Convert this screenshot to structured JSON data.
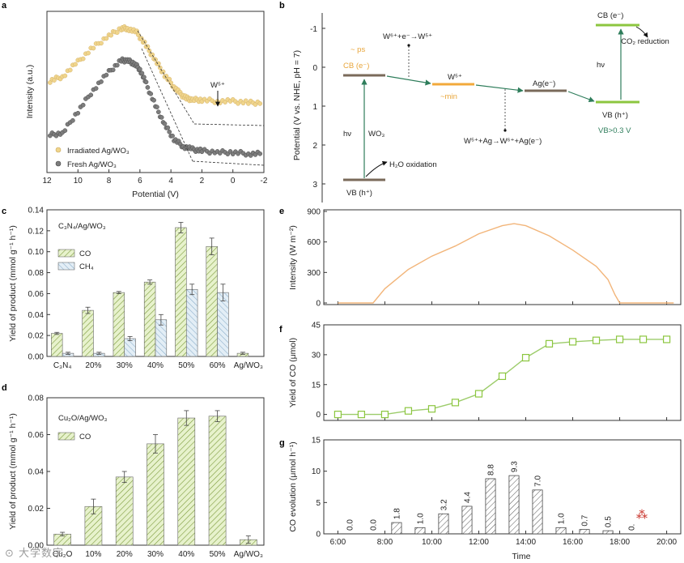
{
  "panel_letters": {
    "a": "a",
    "b": "b",
    "c": "c",
    "d": "d",
    "e": "e",
    "f": "f",
    "g": "g"
  },
  "watermark": "⊙ 大学数字",
  "chart_data": [
    {
      "panel": "a",
      "type": "scatter",
      "ylabel": "Intensity (a.u.)",
      "xlabel": "Potential (V)",
      "x_ticks": [
        "12",
        "10",
        "8",
        "6",
        "4",
        "2",
        "0",
        "-2"
      ],
      "xlim": [
        12,
        -2
      ],
      "annotation": "W⁵⁺",
      "series": [
        {
          "name": "Irradiated Ag/WO₃",
          "color": "#f0d58c",
          "x": [
            11.8,
            11.0,
            10.0,
            9.0,
            8.0,
            7.2,
            6.8,
            6.2,
            5.6,
            5.0,
            4.4,
            3.8,
            3.4,
            3.0,
            2.6,
            2.0,
            1.0,
            0.0,
            -1.0,
            -1.9
          ],
          "y": [
            0.64,
            0.67,
            0.77,
            0.87,
            0.95,
            1.0,
            1.0,
            0.97,
            0.88,
            0.78,
            0.68,
            0.6,
            0.55,
            0.52,
            0.51,
            0.51,
            0.5,
            0.5,
            0.49,
            0.49
          ]
        },
        {
          "name": "Fresh Ag/WO₃",
          "color": "#7d7d7d",
          "x": [
            11.8,
            11.0,
            10.0,
            9.0,
            8.0,
            7.2,
            6.8,
            6.4,
            6.0,
            5.6,
            5.0,
            4.4,
            3.8,
            3.2,
            2.6,
            2.0,
            1.0,
            0.0,
            -1.0,
            -1.9
          ],
          "y": [
            0.27,
            0.28,
            0.43,
            0.58,
            0.7,
            0.78,
            0.78,
            0.76,
            0.72,
            0.62,
            0.47,
            0.34,
            0.24,
            0.19,
            0.17,
            0.16,
            0.15,
            0.15,
            0.14,
            0.14
          ]
        }
      ]
    },
    {
      "panel": "b",
      "type": "diagram",
      "ylabel": "Potential (V vs. NHE, pH = 7)",
      "y_ticks": [
        "-1",
        "0",
        "1",
        "2",
        "3"
      ],
      "ylim": [
        -1.3,
        3.3
      ],
      "labels": {
        "ps": "~ ps",
        "cb_wo3": "CB (e⁻)",
        "vb_wo3": "VB (h⁺)",
        "hv": "hν",
        "wo3": "WO₃",
        "h2o": "H₂O oxidation",
        "w5_top": "W⁶⁺+e⁻→W⁵⁺",
        "w5": "W⁵⁺",
        "min": "~min",
        "ag": "Ag(e⁻)",
        "w5_bottom": "W⁵⁺+Ag→W⁶⁺+Ag(e⁻)",
        "cb2": "CB (e⁻)",
        "co2": "CO₂ reduction",
        "hv2": "hν",
        "vb2": "VB (h⁺)",
        "vb2_note": "VB>0.3 V"
      }
    },
    {
      "panel": "c",
      "type": "bar",
      "legend_title": "C₃N₄/Ag/WO₃",
      "ylabel": "Yield of product (mmol g⁻¹ h⁻¹)",
      "categories": [
        "C₃N₄",
        "20%",
        "30%",
        "40%",
        "50%",
        "60%",
        "Ag/WO₃"
      ],
      "ylim": [
        0,
        0.14
      ],
      "y_ticks": [
        "0.00",
        "0.02",
        "0.04",
        "0.06",
        "0.08",
        "0.10",
        "0.12",
        "0.14"
      ],
      "series": [
        {
          "name": "CO",
          "values": [
            0.022,
            0.044,
            0.061,
            0.071,
            0.123,
            0.105,
            0.003
          ],
          "errors": [
            0.001,
            0.003,
            0.001,
            0.002,
            0.005,
            0.008,
            0.001
          ]
        },
        {
          "name": "CH₄",
          "values": [
            0.003,
            0.003,
            0.017,
            0.035,
            0.064,
            0.061,
            0.0
          ],
          "errors": [
            0.001,
            0.001,
            0.002,
            0.005,
            0.005,
            0.008,
            0.0
          ]
        }
      ]
    },
    {
      "panel": "d",
      "type": "bar",
      "legend_title": "Cu₂O/Ag/WO₃",
      "ylabel": "Yield of product (mmol g⁻¹ h⁻¹)",
      "categories": [
        "Cu₂O",
        "10%",
        "20%",
        "30%",
        "40%",
        "50%",
        "Ag/WO₃"
      ],
      "ylim": [
        0,
        0.08
      ],
      "y_ticks": [
        "0.00",
        "0.02",
        "0.04",
        "0.06",
        "0.08"
      ],
      "series": [
        {
          "name": "CO",
          "values": [
            0.006,
            0.021,
            0.037,
            0.055,
            0.069,
            0.07,
            0.003
          ],
          "errors": [
            0.001,
            0.004,
            0.003,
            0.005,
            0.004,
            0.003,
            0.002
          ]
        }
      ]
    },
    {
      "panel": "e",
      "type": "line",
      "ylabel": "Intensity (W m⁻²)",
      "ylim": [
        0,
        900
      ],
      "y_ticks": [
        "0",
        "300",
        "600",
        "900"
      ],
      "x": [
        6.0,
        7.5,
        8.0,
        9.0,
        10.0,
        11.0,
        12.0,
        13.0,
        13.5,
        14.0,
        15.0,
        16.0,
        17.0,
        17.5,
        17.8,
        18.0,
        20.3
      ],
      "values": [
        0,
        0,
        140,
        330,
        460,
        560,
        680,
        760,
        780,
        760,
        660,
        520,
        360,
        230,
        80,
        0,
        0
      ]
    },
    {
      "panel": "f",
      "type": "line",
      "ylabel": "Yield of CO (μmol)",
      "ylim": [
        -3,
        45
      ],
      "y_ticks": [
        "0",
        "15",
        "30",
        "45"
      ],
      "x": [
        6,
        7,
        8,
        9,
        10,
        11,
        12,
        13,
        14,
        15,
        16,
        17,
        18,
        19,
        20
      ],
      "values": [
        0,
        0,
        0,
        1.8,
        2.8,
        6.0,
        10.4,
        19.2,
        28.5,
        35.5,
        36.5,
        37.2,
        37.7,
        37.7,
        37.7
      ]
    },
    {
      "panel": "g",
      "type": "bar",
      "xlabel": "Time",
      "ylabel": "CO evolution (μmol h⁻¹)",
      "ylim": [
        0,
        15
      ],
      "y_ticks": [
        "0",
        "5",
        "10",
        "15"
      ],
      "x_ticks": [
        "6:00",
        "8:00",
        "10:00",
        "12:00",
        "14:00",
        "16:00",
        "18:00",
        "20:00"
      ],
      "x": [
        6.5,
        7.5,
        8.5,
        9.5,
        10.5,
        11.5,
        12.5,
        13.5,
        14.5,
        15.5,
        16.5,
        17.5,
        18.5
      ],
      "values": [
        0.0,
        0.0,
        1.8,
        1.0,
        3.2,
        4.4,
        8.8,
        9.3,
        7.0,
        1.0,
        0.7,
        0.5,
        0.0
      ],
      "data_labels": [
        "0.0",
        "0.0",
        "1.8",
        "1.0",
        "3.2",
        "4.4",
        "8.8",
        "9.3",
        "7.0",
        "1.0",
        "0.7",
        "0.5",
        "0."
      ]
    }
  ]
}
